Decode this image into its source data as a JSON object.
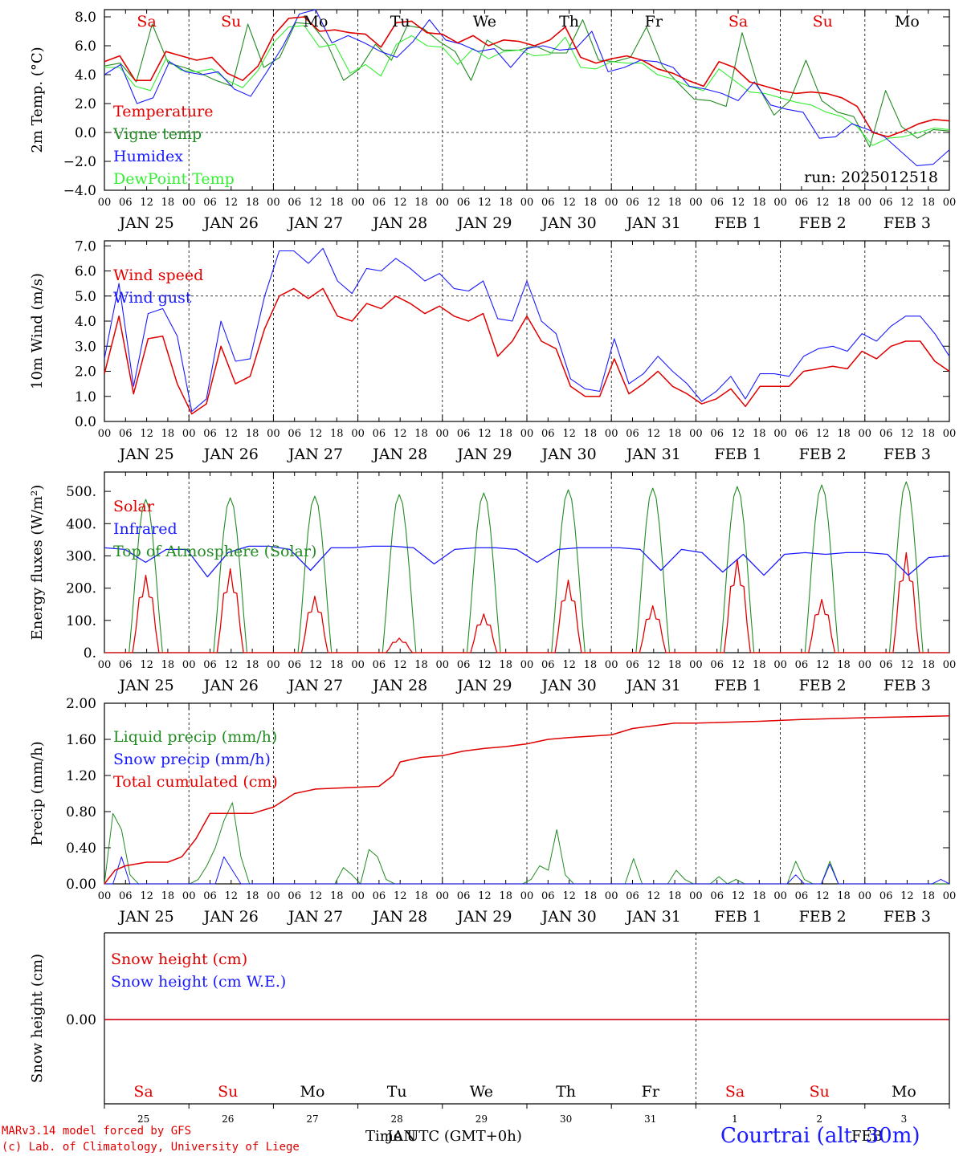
{
  "days_top": [
    {
      "label": "Sa",
      "color": "#e00000"
    },
    {
      "label": "Su",
      "color": "#e00000"
    },
    {
      "label": "Mo",
      "color": "#000000"
    },
    {
      "label": "Tu",
      "color": "#000000"
    },
    {
      "label": "We",
      "color": "#000000"
    },
    {
      "label": "Th",
      "color": "#000000"
    },
    {
      "label": "Fr",
      "color": "#000000"
    },
    {
      "label": "Sa",
      "color": "#e00000"
    },
    {
      "label": "Su",
      "color": "#e00000"
    },
    {
      "label": "Mo",
      "color": "#000000"
    }
  ],
  "date_labels": [
    "JAN 25",
    "JAN 26",
    "JAN 27",
    "JAN 28",
    "JAN 29",
    "JAN 30",
    "JAN 31",
    "FEB  1",
    "FEB  2",
    "FEB  3"
  ],
  "hour_ticks": [
    "00",
    "06",
    "12",
    "18"
  ],
  "hour_end": "00",
  "snow_day_numbers": [
    "25",
    "26",
    "27",
    "28",
    "29",
    "30",
    "31",
    "1",
    "2",
    "3"
  ],
  "footer": {
    "model": "MARv3.14 model forced by GFS",
    "copyright": "(c) Lab. of Climatology, University of Liege",
    "time_label": "Time UTC (GMT+0h)",
    "month_jan": "JAN",
    "month_feb": "FEB",
    "station": "Courtrai (alt. 30m)"
  },
  "chart_data": [
    {
      "type": "line",
      "ylabel": "2m Temp. (°C)",
      "ylim": [
        -4,
        8.5
      ],
      "yticks": [
        -4,
        -2,
        0,
        2,
        4,
        6,
        8
      ],
      "ytick_labels": [
        "−4.0",
        "−2.0",
        "0.0",
        "2.0",
        "4.0",
        "6.0",
        "8.0"
      ],
      "annotation": "run: 2025012518",
      "reference_line": 0,
      "x_hours_start": 0,
      "x_hours_end": 240,
      "x_step_hours": 6,
      "series": [
        {
          "name": "Temperature",
          "color": "#e00000",
          "values": [
            4.9,
            5.3,
            3.6,
            3.6,
            5.6,
            5.3,
            5.0,
            5.2,
            4.1,
            3.6,
            4.6,
            6.7,
            7.9,
            8.0,
            7.0,
            7.1,
            6.9,
            6.8,
            5.9,
            7.6,
            7.7,
            6.9,
            6.8,
            6.2,
            6.7,
            6.0,
            6.4,
            6.3,
            6.0,
            6.4,
            7.3,
            5.2,
            4.8,
            5.1,
            5.3,
            5.0,
            4.4,
            4.1,
            3.6,
            3.2,
            4.9,
            4.5,
            3.5,
            3.2,
            2.9,
            2.7,
            2.8,
            2.7,
            2.4,
            1.8,
            0.0,
            -0.3,
            0.1,
            0.6,
            0.9,
            0.8
          ]
        },
        {
          "name": "Vigne temp",
          "color": "#228b22",
          "values": [
            4.6,
            4.8,
            3.5,
            7.5,
            4.8,
            4.5,
            4.1,
            3.6,
            3.2,
            7.5,
            4.5,
            5.2,
            7.6,
            7.5,
            6.1,
            3.6,
            4.4,
            6.1,
            5.0,
            7.4,
            7.2,
            6.3,
            5.6,
            3.6,
            6.4,
            5.7,
            5.7,
            6.0,
            5.5,
            5.5,
            7.8,
            5.0,
            4.9,
            5.2,
            7.3,
            4.6,
            3.4,
            2.3,
            2.2,
            1.8,
            6.9,
            3.2,
            1.2,
            2.2,
            5.0,
            2.2,
            1.4,
            1.1,
            -1.0,
            2.9,
            0.4,
            -0.4,
            0.2,
            0.1
          ]
        },
        {
          "name": "Humidex",
          "color": "#1a1aff",
          "values": [
            4.0,
            4.7,
            2.0,
            2.4,
            4.9,
            4.2,
            4.0,
            4.2,
            3.0,
            2.5,
            4.2,
            6.0,
            8.2,
            8.5,
            6.2,
            6.7,
            6.2,
            5.6,
            5.2,
            6.3,
            7.8,
            6.4,
            6.1,
            5.6,
            5.8,
            4.5,
            5.8,
            6.0,
            5.7,
            5.8,
            7.0,
            4.2,
            4.5,
            5.0,
            4.9,
            4.5,
            3.2,
            3.0,
            2.7,
            2.2,
            3.5,
            1.9,
            1.6,
            1.4,
            -0.4,
            -0.3,
            0.6,
            0.2,
            -0.3,
            -1.3,
            -2.3,
            -2.2,
            -1.2
          ]
        },
        {
          "name": "DewPoint Temp",
          "color": "#33ee33",
          "values": [
            4.5,
            4.5,
            3.2,
            2.9,
            5.1,
            4.3,
            4.2,
            4.4,
            3.6,
            3.1,
            4.3,
            6.2,
            7.3,
            7.4,
            5.9,
            6.1,
            4.1,
            4.7,
            3.9,
            6.1,
            6.7,
            6.0,
            5.9,
            4.7,
            5.8,
            5.1,
            5.6,
            5.7,
            5.3,
            5.4,
            6.6,
            4.5,
            4.4,
            4.9,
            4.8,
            4.8,
            4.0,
            3.7,
            3.2,
            2.9,
            4.4,
            3.6,
            2.8,
            2.7,
            2.4,
            2.1,
            1.9,
            1.4,
            1.1,
            0.4,
            -0.9,
            -0.4,
            -0.3,
            0.0,
            0.3,
            0.2
          ]
        }
      ]
    },
    {
      "type": "line",
      "ylabel": "10m Wind (m/s)",
      "ylim": [
        0,
        7.2
      ],
      "yticks": [
        0,
        1,
        2,
        3,
        4,
        5,
        6,
        7
      ],
      "ytick_labels": [
        "0.0",
        "1.0",
        "2.0",
        "3.0",
        "4.0",
        "5.0",
        "6.0",
        "7.0"
      ],
      "reference_line": 5,
      "x_hours_start": 0,
      "x_hours_end": 240,
      "x_step_hours": 6,
      "series": [
        {
          "name": "Wind speed",
          "color": "#e00000",
          "values": [
            1.9,
            4.2,
            1.1,
            3.3,
            3.4,
            1.5,
            0.3,
            0.7,
            3.0,
            1.5,
            1.8,
            3.7,
            5.0,
            5.3,
            4.9,
            5.3,
            4.2,
            4.0,
            4.7,
            4.5,
            5.0,
            4.7,
            4.3,
            4.6,
            4.2,
            4.0,
            4.3,
            2.6,
            3.2,
            4.2,
            3.2,
            2.9,
            1.4,
            1.0,
            1.0,
            2.5,
            1.1,
            1.5,
            2.0,
            1.4,
            1.1,
            0.7,
            0.9,
            1.3,
            0.6,
            1.4,
            1.4,
            1.4,
            2.0,
            2.1,
            2.2,
            2.1,
            2.8,
            2.5,
            3.0,
            3.2,
            3.2,
            2.4,
            2.0
          ]
        },
        {
          "name": "Wind gust",
          "color": "#1a1aff",
          "values": [
            2.5,
            5.5,
            1.4,
            4.3,
            4.5,
            3.4,
            0.4,
            0.9,
            4.0,
            2.4,
            2.5,
            5.0,
            6.8,
            6.8,
            6.3,
            6.9,
            5.6,
            5.1,
            6.1,
            6.0,
            6.5,
            6.1,
            5.6,
            5.9,
            5.3,
            5.2,
            5.6,
            4.1,
            4.0,
            5.6,
            4.0,
            3.5,
            1.7,
            1.3,
            1.2,
            3.3,
            1.5,
            1.9,
            2.6,
            2.0,
            1.5,
            0.8,
            1.2,
            1.8,
            0.9,
            1.9,
            1.9,
            1.8,
            2.6,
            2.9,
            3.0,
            2.8,
            3.5,
            3.2,
            3.8,
            4.2,
            4.2,
            3.5,
            2.6
          ]
        }
      ]
    },
    {
      "type": "line",
      "ylabel": "Energy fluxes (W/m²)",
      "ylim": [
        0,
        560
      ],
      "yticks": [
        0,
        100,
        200,
        300,
        400,
        500
      ],
      "ytick_labels": [
        "0.",
        "100.",
        "200.",
        "300.",
        "400.",
        "500."
      ],
      "x_hours_start": 0,
      "x_hours_end": 240,
      "series": [
        {
          "name": "Solar",
          "color": "#e00000",
          "peaks": [
            240,
            260,
            175,
            45,
            120,
            225,
            145,
            290,
            165,
            310
          ]
        },
        {
          "name": "Infrared",
          "color": "#1a1aff",
          "values": [
            325,
            320,
            280,
            320,
            320,
            235,
            310,
            330,
            330,
            320,
            255,
            325,
            325,
            330,
            330,
            325,
            275,
            320,
            325,
            325,
            320,
            280,
            320,
            325,
            325,
            325,
            320,
            255,
            320,
            310,
            250,
            305,
            240,
            305,
            310,
            305,
            310,
            310,
            305,
            240,
            295,
            300
          ]
        },
        {
          "name": "Top of Atmosphere (Solar)",
          "color": "#228b22",
          "peaks": [
            475,
            480,
            485,
            490,
            495,
            505,
            510,
            515,
            520,
            530
          ]
        }
      ]
    },
    {
      "type": "line",
      "ylabel": "Precip (mm/h)",
      "ylim": [
        0,
        2.0
      ],
      "yticks": [
        0,
        0.4,
        0.8,
        1.2,
        1.6,
        2.0
      ],
      "ytick_labels": [
        "0.00",
        "0.40",
        "0.80",
        "1.20",
        "1.60",
        "2.00"
      ],
      "x_hours_start": 0,
      "x_hours_end": 240,
      "series": [
        {
          "name": "Liquid precip (mm/h)",
          "color": "#228b22",
          "values": [
            0.0,
            0.78,
            0.6,
            0.1,
            0.0,
            0.0,
            0.0,
            0.0,
            0.0,
            0.0,
            0.0,
            0.05,
            0.2,
            0.4,
            0.7,
            0.9,
            0.3,
            0.0,
            0.0,
            0.0,
            0.0,
            0.0,
            0.0,
            0.0,
            0.0,
            0.0,
            0.0,
            0.0,
            0.18,
            0.1,
            0.0,
            0.38,
            0.3,
            0.05,
            0.0,
            0.0,
            0.0,
            0.0,
            0.0,
            0.0,
            0.0,
            0.0,
            0.0,
            0.0,
            0.0,
            0.0,
            0.0,
            0.0,
            0.0,
            0.0,
            0.05,
            0.2,
            0.15,
            0.6,
            0.1,
            0.0,
            0.0,
            0.0,
            0.0,
            0.0,
            0.0,
            0.0,
            0.28,
            0.0,
            0.0,
            0.0,
            0.0,
            0.15,
            0.05,
            0.0,
            0.0,
            0.0,
            0.08,
            0.0,
            0.05,
            0.0,
            0.0,
            0.0,
            0.0,
            0.0,
            0.0,
            0.25,
            0.05,
            0.0,
            0.0,
            0.25,
            0.0,
            0.0,
            0.0,
            0.0,
            0.0,
            0.0,
            0.0,
            0.0,
            0.0,
            0.0,
            0.0,
            0.0,
            0.0,
            0.0
          ]
        },
        {
          "name": "Snow precip (mm/h)",
          "color": "#1a1aff",
          "values": [
            0.0,
            0.0,
            0.3,
            0.0,
            0.0,
            0.0,
            0.0,
            0.0,
            0.0,
            0.0,
            0.0,
            0.0,
            0.0,
            0.0,
            0.3,
            0.15,
            0.0,
            0.0,
            0.0,
            0.0,
            0.0,
            0.0,
            0.0,
            0.0,
            0.0,
            0.0,
            0.0,
            0.0,
            0.0,
            0.0,
            0.0,
            0.0,
            0.0,
            0.0,
            0.0,
            0.0,
            0.0,
            0.0,
            0.0,
            0.0,
            0.0,
            0.0,
            0.0,
            0.0,
            0.0,
            0.0,
            0.0,
            0.0,
            0.0,
            0.0,
            0.0,
            0.0,
            0.0,
            0.0,
            0.0,
            0.0,
            0.0,
            0.0,
            0.0,
            0.0,
            0.0,
            0.0,
            0.0,
            0.0,
            0.0,
            0.0,
            0.0,
            0.0,
            0.0,
            0.0,
            0.0,
            0.0,
            0.0,
            0.0,
            0.0,
            0.0,
            0.0,
            0.0,
            0.0,
            0.0,
            0.0,
            0.1,
            0.0,
            0.0,
            0.0,
            0.22,
            0.0,
            0.0,
            0.0,
            0.0,
            0.0,
            0.0,
            0.0,
            0.0,
            0.0,
            0.0,
            0.0,
            0.0,
            0.05,
            0.0
          ]
        },
        {
          "name": "Total cumulated (cm)",
          "color": "#e00000",
          "points": [
            [
              0,
              0.0
            ],
            [
              3,
              0.15
            ],
            [
              6,
              0.2
            ],
            [
              12,
              0.24
            ],
            [
              18,
              0.24
            ],
            [
              22,
              0.3
            ],
            [
              26,
              0.5
            ],
            [
              30,
              0.78
            ],
            [
              42,
              0.78
            ],
            [
              48,
              0.85
            ],
            [
              54,
              1.0
            ],
            [
              60,
              1.05
            ],
            [
              72,
              1.07
            ],
            [
              78,
              1.08
            ],
            [
              82,
              1.2
            ],
            [
              84,
              1.35
            ],
            [
              90,
              1.4
            ],
            [
              96,
              1.42
            ],
            [
              102,
              1.47
            ],
            [
              108,
              1.5
            ],
            [
              114,
              1.52
            ],
            [
              120,
              1.55
            ],
            [
              126,
              1.6
            ],
            [
              132,
              1.62
            ],
            [
              144,
              1.65
            ],
            [
              150,
              1.72
            ],
            [
              156,
              1.75
            ],
            [
              162,
              1.78
            ],
            [
              168,
              1.78
            ],
            [
              186,
              1.8
            ],
            [
              198,
              1.82
            ],
            [
              216,
              1.84
            ],
            [
              240,
              1.86
            ]
          ]
        }
      ]
    },
    {
      "type": "line",
      "ylabel": "Snow height (cm)",
      "ylim": [
        -1,
        1
      ],
      "yticks": [
        0
      ],
      "ytick_labels": [
        "0.00"
      ],
      "x_hours_start": 0,
      "x_hours_end": 240,
      "series": [
        {
          "name": "Snow height (cm)",
          "color": "#e00000",
          "values": [
            0,
            0
          ]
        },
        {
          "name": "Snow height (cm W.E.)",
          "color": "#1a1aff",
          "values": [
            0,
            0
          ]
        }
      ]
    }
  ]
}
